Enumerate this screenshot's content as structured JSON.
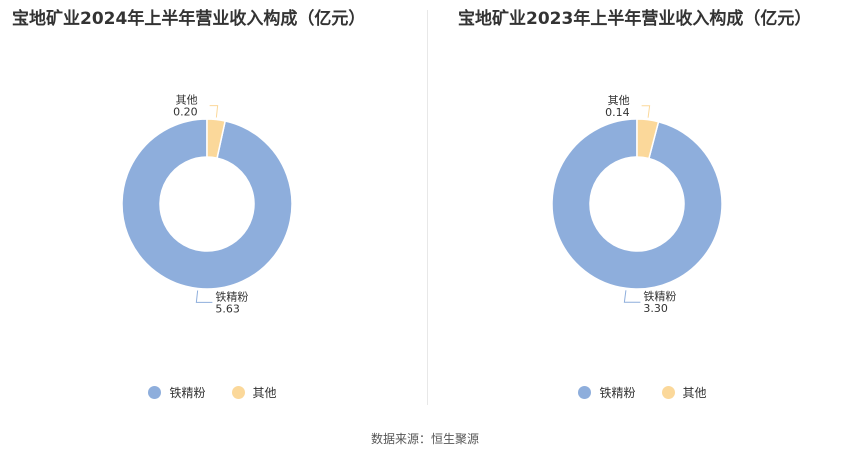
{
  "colors": {
    "iron": "#8eaedc",
    "other": "#fbd89a",
    "text": "#333333"
  },
  "chart_data": [
    {
      "type": "pie",
      "variant": "donut",
      "title": "宝地矿业2024年上半年营业收入构成（亿元）",
      "slices": [
        {
          "label": "铁精粉",
          "value": 5.63,
          "value_text": "5.63"
        },
        {
          "label": "其他",
          "value": 0.2,
          "value_text": "0.20"
        }
      ],
      "legend": [
        "铁精粉",
        "其他"
      ],
      "legend_position": "bottom"
    },
    {
      "type": "pie",
      "variant": "donut",
      "title": "宝地矿业2023年上半年营业收入构成（亿元）",
      "slices": [
        {
          "label": "铁精粉",
          "value": 3.3,
          "value_text": "3.30"
        },
        {
          "label": "其他",
          "value": 0.14,
          "value_text": "0.14"
        }
      ],
      "legend": [
        "铁精粉",
        "其他"
      ],
      "legend_position": "bottom"
    }
  ],
  "footer": {
    "source": "数据来源：恒生聚源"
  }
}
